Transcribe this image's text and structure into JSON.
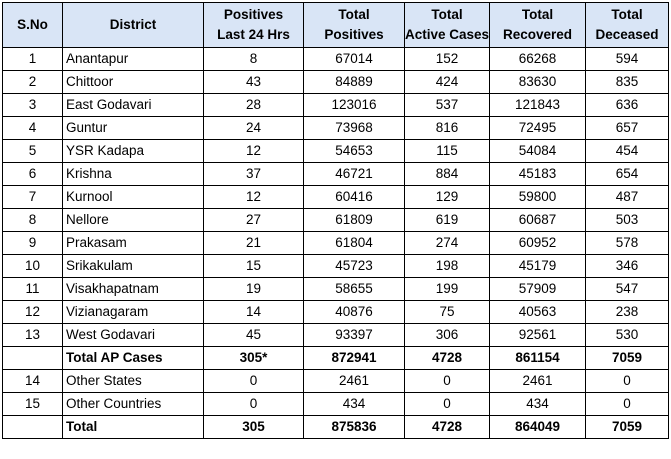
{
  "headers": [
    {
      "lines": [
        "S.No"
      ]
    },
    {
      "lines": [
        "District"
      ]
    },
    {
      "lines": [
        "Positives",
        "Last 24 Hrs"
      ]
    },
    {
      "lines": [
        "Total",
        "Positives"
      ]
    },
    {
      "lines": [
        "Total",
        "Active Cases"
      ]
    },
    {
      "lines": [
        "Total",
        "Recovered"
      ]
    },
    {
      "lines": [
        "Total",
        "Deceased"
      ]
    }
  ],
  "rows": [
    {
      "sno": "1",
      "district": "Anantapur",
      "positives_24h": "8",
      "total_positives": "67014",
      "active": "152",
      "recovered": "66268",
      "deceased": "594",
      "bold": false
    },
    {
      "sno": "2",
      "district": "Chittoor",
      "positives_24h": "43",
      "total_positives": "84889",
      "active": "424",
      "recovered": "83630",
      "deceased": "835",
      "bold": false
    },
    {
      "sno": "3",
      "district": "East Godavari",
      "positives_24h": "28",
      "total_positives": "123016",
      "active": "537",
      "recovered": "121843",
      "deceased": "636",
      "bold": false
    },
    {
      "sno": "4",
      "district": "Guntur",
      "positives_24h": "24",
      "total_positives": "73968",
      "active": "816",
      "recovered": "72495",
      "deceased": "657",
      "bold": false
    },
    {
      "sno": "5",
      "district": "YSR Kadapa",
      "positives_24h": "12",
      "total_positives": "54653",
      "active": "115",
      "recovered": "54084",
      "deceased": "454",
      "bold": false
    },
    {
      "sno": "6",
      "district": "Krishna",
      "positives_24h": "37",
      "total_positives": "46721",
      "active": "884",
      "recovered": "45183",
      "deceased": "654",
      "bold": false
    },
    {
      "sno": "7",
      "district": "Kurnool",
      "positives_24h": "12",
      "total_positives": "60416",
      "active": "129",
      "recovered": "59800",
      "deceased": "487",
      "bold": false
    },
    {
      "sno": "8",
      "district": "Nellore",
      "positives_24h": "27",
      "total_positives": "61809",
      "active": "619",
      "recovered": "60687",
      "deceased": "503",
      "bold": false
    },
    {
      "sno": "9",
      "district": "Prakasam",
      "positives_24h": "21",
      "total_positives": "61804",
      "active": "274",
      "recovered": "60952",
      "deceased": "578",
      "bold": false
    },
    {
      "sno": "10",
      "district": "Srikakulam",
      "positives_24h": "15",
      "total_positives": "45723",
      "active": "198",
      "recovered": "45179",
      "deceased": "346",
      "bold": false
    },
    {
      "sno": "11",
      "district": "Visakhapatnam",
      "positives_24h": "19",
      "total_positives": "58655",
      "active": "199",
      "recovered": "57909",
      "deceased": "547",
      "bold": false
    },
    {
      "sno": "12",
      "district": "Vizianagaram",
      "positives_24h": "14",
      "total_positives": "40876",
      "active": "75",
      "recovered": "40563",
      "deceased": "238",
      "bold": false
    },
    {
      "sno": "13",
      "district": "West Godavari",
      "positives_24h": "45",
      "total_positives": "93397",
      "active": "306",
      "recovered": "92561",
      "deceased": "530",
      "bold": false
    },
    {
      "sno": "",
      "district": "Total AP Cases",
      "positives_24h": "305*",
      "total_positives": "872941",
      "active": "4728",
      "recovered": "861154",
      "deceased": "7059",
      "bold": true
    },
    {
      "sno": "14",
      "district": "Other States",
      "positives_24h": "0",
      "total_positives": "2461",
      "active": "0",
      "recovered": "2461",
      "deceased": "0",
      "bold": false
    },
    {
      "sno": "15",
      "district": "Other Countries",
      "positives_24h": "0",
      "total_positives": "434",
      "active": "0",
      "recovered": "434",
      "deceased": "0",
      "bold": false
    },
    {
      "sno": "",
      "district": "Total",
      "positives_24h": "305",
      "total_positives": "875836",
      "active": "4728",
      "recovered": "864049",
      "deceased": "7059",
      "bold": true
    }
  ],
  "colors": {
    "header_bg": "#d9e5f6",
    "border": "#000000"
  }
}
